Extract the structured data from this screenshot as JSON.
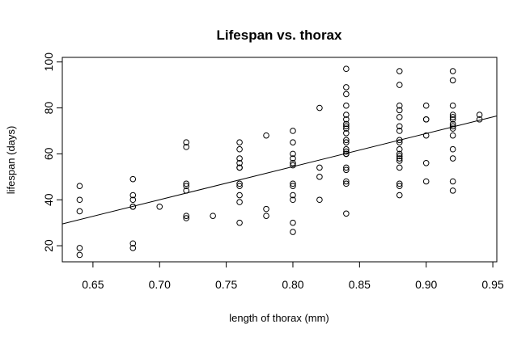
{
  "chart_data": {
    "type": "scatter",
    "title": "Lifespan vs. thorax",
    "xlabel": "length of thorax (mm)",
    "ylabel": "lifespan (days)",
    "xlim": [
      0.627,
      0.953
    ],
    "ylim": [
      13,
      102
    ],
    "x_ticks": [
      0.65,
      0.7,
      0.75,
      0.8,
      0.85,
      0.9,
      0.95
    ],
    "x_tick_labels": [
      "0.65",
      "0.70",
      "0.75",
      "0.80",
      "0.85",
      "0.90",
      "0.95"
    ],
    "y_ticks": [
      20,
      40,
      60,
      80,
      100
    ],
    "y_tick_labels": [
      "20",
      "40",
      "60",
      "80",
      "100"
    ],
    "grid": false,
    "legend": "none",
    "points": {
      "x": [
        0.64,
        0.64,
        0.64,
        0.64,
        0.64,
        0.68,
        0.68,
        0.68,
        0.68,
        0.68,
        0.68,
        0.68,
        0.7,
        0.72,
        0.72,
        0.72,
        0.72,
        0.72,
        0.72,
        0.72,
        0.74,
        0.76,
        0.76,
        0.76,
        0.76,
        0.76,
        0.76,
        0.76,
        0.76,
        0.76,
        0.76,
        0.76,
        0.78,
        0.78,
        0.78,
        0.8,
        0.8,
        0.8,
        0.8,
        0.8,
        0.8,
        0.8,
        0.8,
        0.8,
        0.8,
        0.8,
        0.8,
        0.82,
        0.82,
        0.82,
        0.82,
        0.84,
        0.84,
        0.84,
        0.84,
        0.84,
        0.84,
        0.84,
        0.84,
        0.84,
        0.84,
        0.84,
        0.84,
        0.84,
        0.84,
        0.84,
        0.84,
        0.84,
        0.84,
        0.84,
        0.84,
        0.84,
        0.88,
        0.88,
        0.88,
        0.88,
        0.88,
        0.88,
        0.88,
        0.88,
        0.88,
        0.88,
        0.88,
        0.88,
        0.88,
        0.88,
        0.88,
        0.88,
        0.88,
        0.88,
        0.9,
        0.9,
        0.9,
        0.9,
        0.9,
        0.9,
        0.92,
        0.92,
        0.92,
        0.92,
        0.92,
        0.92,
        0.92,
        0.92,
        0.92,
        0.92,
        0.92,
        0.92,
        0.92,
        0.92,
        0.94,
        0.94
      ],
      "y": [
        46,
        40,
        35,
        19,
        16,
        49,
        42,
        40,
        37,
        21,
        19,
        37,
        37,
        65,
        63,
        47,
        46,
        44,
        33,
        32,
        33,
        65,
        62,
        58,
        56,
        54,
        47,
        46,
        42,
        39,
        30,
        54,
        68,
        36,
        33,
        70,
        65,
        60,
        58,
        56,
        55,
        47,
        46,
        42,
        40,
        30,
        26,
        80,
        54,
        50,
        40,
        97,
        89,
        86,
        81,
        77,
        73,
        72,
        71,
        69,
        66,
        65,
        62,
        61,
        60,
        54,
        53,
        48,
        47,
        34,
        75,
        60,
        96,
        90,
        81,
        79,
        76,
        72,
        70,
        66,
        62,
        60,
        59,
        57,
        54,
        47,
        46,
        42,
        58,
        65,
        81,
        75,
        68,
        56,
        48,
        75,
        96,
        92,
        81,
        77,
        76,
        75,
        73,
        72,
        71,
        68,
        62,
        58,
        48,
        44,
        77,
        75
      ]
    },
    "fit_line": {
      "x": [
        0.627,
        0.953
      ],
      "y": [
        29.5,
        76.5
      ]
    }
  }
}
